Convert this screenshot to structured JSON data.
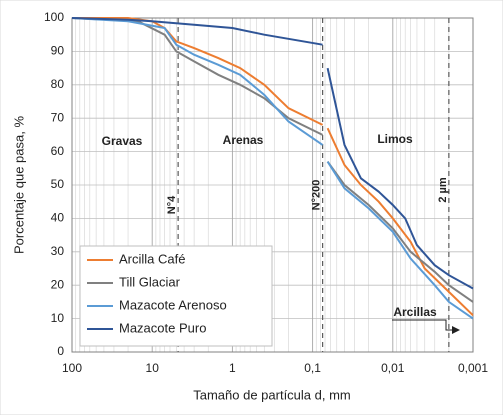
{
  "chart_data": {
    "type": "line",
    "xlabel": "Tamaño de partícula d, mm",
    "ylabel": "Porcentaje que pasa, %",
    "xscale": "log",
    "xlim": [
      100,
      0.001
    ],
    "xticks": [
      100,
      10,
      1,
      {
        "value": 0.1,
        "label": "0,1"
      },
      {
        "value": 0.01,
        "label": "0,01"
      },
      {
        "value": 0.001,
        "label": "0,001"
      }
    ],
    "ylim": [
      0,
      100
    ],
    "yticks": [
      0,
      10,
      20,
      30,
      40,
      50,
      60,
      70,
      80,
      90,
      100
    ],
    "grid": true,
    "legend": "lower left",
    "series": [
      {
        "name": "Arcilla Café",
        "color": "#ed7d31",
        "x": [
          100,
          20,
          10,
          7,
          5,
          3,
          1.5,
          0.8,
          0.4,
          0.2,
          0.075,
          0.07,
          0.065,
          0.04,
          0.025,
          0.015,
          0.01,
          0.006,
          0.004,
          0.002,
          0.001
        ],
        "values": [
          100,
          100,
          99,
          97,
          93,
          91,
          88,
          85,
          80,
          73,
          68,
          null,
          67,
          56,
          50,
          45,
          40,
          33,
          25,
          18,
          11
        ]
      },
      {
        "name": "Till Glaciar",
        "color": "#808080",
        "x": [
          100,
          15,
          7,
          5,
          3,
          1.5,
          0.8,
          0.4,
          0.2,
          0.075,
          0.07,
          0.065,
          0.04,
          0.02,
          0.01,
          0.006,
          0.003,
          0.002,
          0.001
        ],
        "values": [
          100,
          99,
          95,
          90,
          87,
          83,
          80,
          76,
          70,
          65,
          null,
          57,
          50,
          44,
          37,
          30,
          24,
          20,
          15
        ]
      },
      {
        "name": "Mazacote Arenoso",
        "color": "#5b9bd5",
        "x": [
          100,
          20,
          7,
          5,
          3,
          1.5,
          0.8,
          0.4,
          0.2,
          0.075,
          0.07,
          0.065,
          0.04,
          0.02,
          0.01,
          0.006,
          0.003,
          0.002,
          0.001
        ],
        "values": [
          100,
          99,
          97,
          92,
          89,
          86,
          83,
          77,
          69,
          62,
          null,
          57,
          49,
          43,
          36,
          28,
          20,
          15,
          10
        ]
      },
      {
        "name": "Mazacote Puro",
        "color": "#2f5597",
        "x": [
          100,
          20,
          10,
          3,
          1,
          0.4,
          0.075,
          0.07,
          0.065,
          0.04,
          0.025,
          0.015,
          0.01,
          0.007,
          0.005,
          0.003,
          0.002,
          0.001
        ],
        "values": [
          100,
          99.5,
          99,
          98,
          97,
          95,
          92,
          null,
          85,
          62,
          52,
          48,
          44,
          40,
          32,
          26,
          23,
          19
        ]
      }
    ],
    "reference_lines": [
      {
        "x": 4.75,
        "label": "N°4"
      },
      {
        "x": 0.075,
        "label": "N°200"
      },
      {
        "x": 0.002,
        "label": "2 µm"
      }
    ],
    "regions": [
      "Gravas",
      "Arenas",
      "Limos",
      "Arcillas"
    ]
  }
}
